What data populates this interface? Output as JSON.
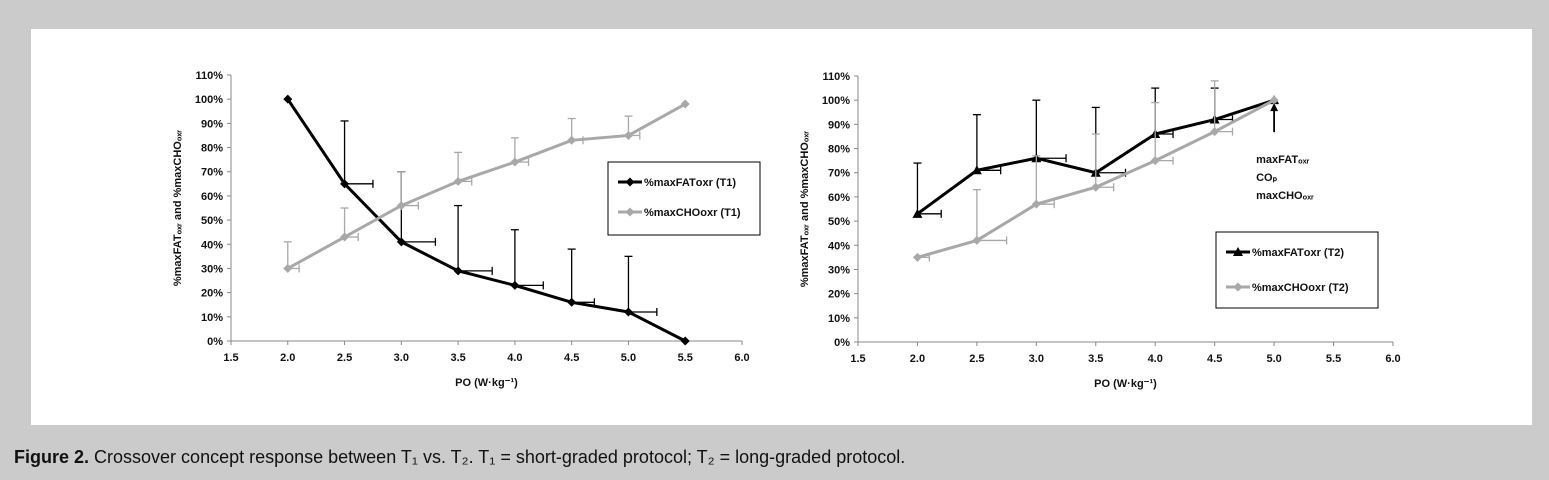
{
  "caption": {
    "bold": "Figure 2.",
    "text": "Crossover concept response between T₁ vs. T₂. T₁ = short-graded protocol; T₂ = long-graded protocol."
  },
  "chart_data": [
    {
      "type": "line",
      "xlabel": "PO (W·kg⁻¹)",
      "ylabel": "%maxFATₒₓᵣ and %maxCHOₒₓᵣ",
      "xlim": [
        1.5,
        6.0
      ],
      "ylim": [
        0,
        110
      ],
      "xticks": [
        "1.5",
        "2.0",
        "2.5",
        "3.0",
        "3.5",
        "4.0",
        "4.5",
        "5.0",
        "5.5",
        "6.0"
      ],
      "yticks": [
        "0%",
        "10%",
        "20%",
        "30%",
        "40%",
        "50%",
        "60%",
        "70%",
        "80%",
        "90%",
        "100%",
        "110%"
      ],
      "series": [
        {
          "name": "%maxFATоxr (T1)",
          "marker": "diamond",
          "color": "#000000",
          "x": [
            2.0,
            2.5,
            3.0,
            3.5,
            4.0,
            4.5,
            5.0,
            5.5
          ],
          "y": [
            100,
            65,
            41,
            29,
            23,
            16,
            12,
            0
          ],
          "err_y": [
            0,
            26,
            29,
            27,
            23,
            22,
            23,
            0
          ],
          "err_x": [
            0,
            0.25,
            0.3,
            0.3,
            0.25,
            0.2,
            0.25,
            0
          ]
        },
        {
          "name": "%maxCHOоxr (T1)",
          "marker": "diamond",
          "color": "#a8a8a8",
          "x": [
            2.0,
            2.5,
            3.0,
            3.5,
            4.0,
            4.5,
            5.0,
            5.5
          ],
          "y": [
            30,
            43,
            56,
            66,
            74,
            83,
            85,
            98
          ],
          "err_y": [
            11,
            12,
            14,
            12,
            10,
            9,
            8,
            0
          ],
          "err_x": [
            0.1,
            0.12,
            0.15,
            0.12,
            0.12,
            0.1,
            0.1,
            0
          ]
        }
      ],
      "legend": {
        "position": "right",
        "entries": [
          "%maxFATоxr (T1)",
          "%maxCHOоxr (T1)"
        ]
      }
    },
    {
      "type": "line",
      "xlabel": "PO (W·kg⁻¹)",
      "ylabel": "%maxFATₒₓᵣ and %maxCHOₒₓᵣ",
      "xlim": [
        1.5,
        6.0
      ],
      "ylim": [
        0,
        110
      ],
      "xticks": [
        "1.5",
        "2.0",
        "2.5",
        "3.0",
        "3.5",
        "4.0",
        "4.5",
        "5.0",
        "5.5",
        "6.0"
      ],
      "yticks": [
        "0%",
        "10%",
        "20%",
        "30%",
        "40%",
        "50%",
        "60%",
        "70%",
        "80%",
        "90%",
        "100%",
        "110%"
      ],
      "series": [
        {
          "name": "%maxFATоxr (T2)",
          "marker": "triangle",
          "color": "#000000",
          "x": [
            2.0,
            2.5,
            3.0,
            3.5,
            4.0,
            4.5,
            5.0
          ],
          "y": [
            53,
            71,
            76,
            70,
            86,
            92,
            100
          ],
          "err_y": [
            21,
            23,
            24,
            27,
            19,
            13,
            0
          ],
          "err_x": [
            0.2,
            0.2,
            0.25,
            0.25,
            0.15,
            0.15,
            0
          ]
        },
        {
          "name": "%maxCHOоxr (T2)",
          "marker": "diamond",
          "color": "#a8a8a8",
          "x": [
            2.0,
            2.5,
            3.0,
            3.5,
            4.0,
            4.5,
            5.0
          ],
          "y": [
            35,
            42,
            57,
            64,
            75,
            87,
            100
          ],
          "err_y": [
            0,
            21,
            20,
            22,
            24,
            21,
            0
          ],
          "err_x": [
            0.1,
            0.25,
            0.15,
            0.15,
            0.15,
            0.15,
            0
          ]
        }
      ],
      "legend": {
        "position": "bottom-right",
        "entries": [
          "%maxFATоxr (T2)",
          "%maxCHOоxr (T2)"
        ]
      },
      "annotation": {
        "lines": [
          "maxFATₒₓᵣ",
          "COₚ",
          "maxCHOₒₓᵣ"
        ],
        "arrow_to_x": 5.0,
        "arrow_to_y": 100
      }
    }
  ]
}
